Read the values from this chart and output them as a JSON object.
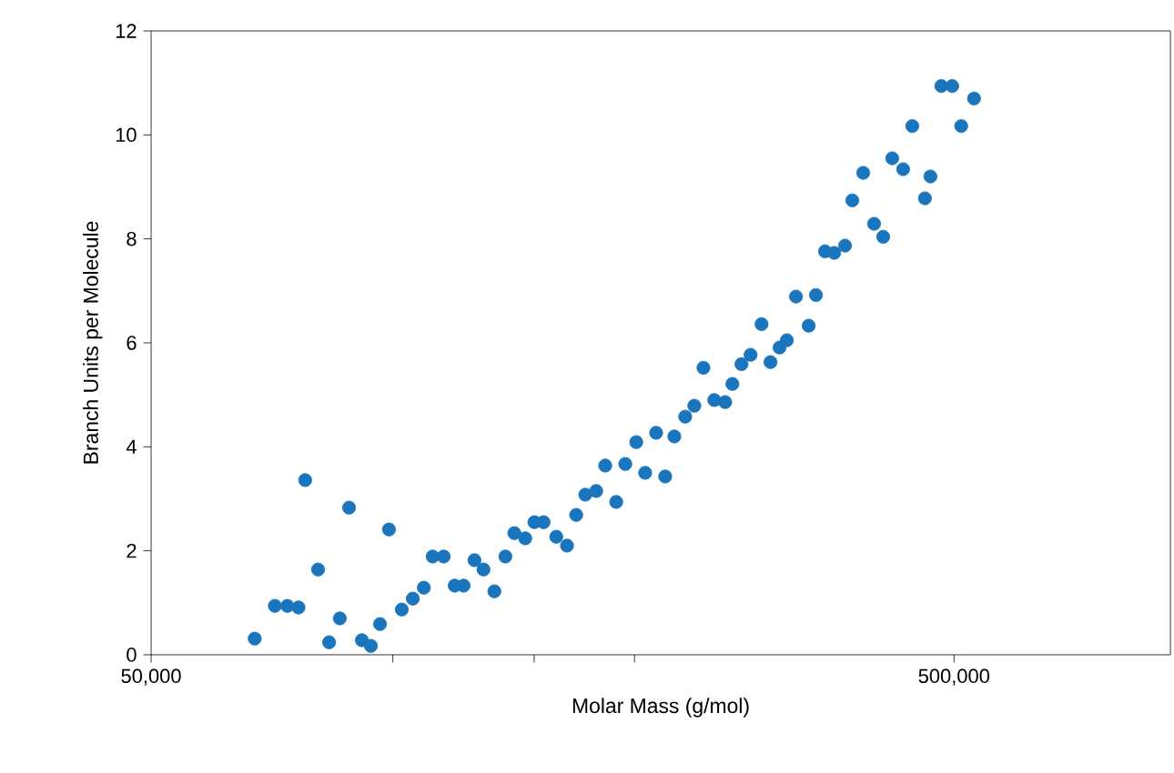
{
  "chart_data": {
    "type": "scatter",
    "xlabel": "Molar Mass (g/mol)",
    "ylabel": "Branch Units per Molecule",
    "log": "x",
    "xlim": [
      50000,
      930000
    ],
    "ylim": [
      0,
      12
    ],
    "xticks": [
      {
        "value": 50000,
        "label": "50,000"
      },
      {
        "value": 100000,
        "label": null
      },
      {
        "value": 150000,
        "label": null
      },
      {
        "value": 200000,
        "label": null
      },
      {
        "value": 500000,
        "label": "500,000"
      }
    ],
    "yticks": [
      0,
      2,
      4,
      6,
      8,
      10,
      12
    ],
    "series": [
      {
        "color": "#1a75bc",
        "x": [
          67300,
          71300,
          73900,
          76300,
          77800,
          80700,
          83300,
          85900,
          88200,
          91500,
          93900,
          96400,
          98900,
          102600,
          105900,
          109300,
          112100,
          115700,
          119400,
          122500,
          126400,
          129700,
          133800,
          138100,
          141700,
          146200,
          150100,
          154100,
          159800,
          164800,
          169200,
          173700,
          179200,
          183900,
          189800,
          194800,
          201000,
          206200,
          212800,
          218400,
          224200,
          231300,
          237400,
          243700,
          251400,
          259400,
          264800,
          271800,
          279000,
          287900,
          295400,
          303200,
          309600,
          317800,
          329600,
          336500,
          345400,
          354600,
          365800,
          373500,
          385400,
          397600,
          408100,
          418800,
          432100,
          443600,
          460000,
          467300,
          482100,
          497400,
          510400,
          529500
        ],
        "values": [
          0.31,
          0.94,
          0.94,
          0.91,
          3.36,
          1.64,
          0.24,
          0.7,
          2.83,
          0.28,
          0.17,
          0.59,
          2.41,
          0.87,
          1.08,
          1.29,
          1.89,
          1.89,
          1.33,
          1.33,
          1.82,
          1.64,
          1.22,
          1.89,
          2.34,
          2.24,
          2.55,
          2.55,
          2.27,
          2.1,
          2.69,
          3.08,
          3.15,
          3.64,
          2.94,
          3.67,
          4.09,
          3.5,
          4.27,
          3.43,
          4.2,
          4.58,
          4.79,
          5.52,
          4.9,
          4.86,
          5.21,
          5.59,
          5.77,
          6.36,
          5.63,
          5.91,
          6.05,
          6.89,
          6.33,
          6.92,
          7.76,
          7.73,
          7.87,
          8.74,
          9.27,
          8.29,
          8.04,
          9.55,
          9.34,
          10.17,
          8.78,
          9.2,
          10.94,
          10.94,
          10.17,
          10.7
        ]
      }
    ]
  }
}
